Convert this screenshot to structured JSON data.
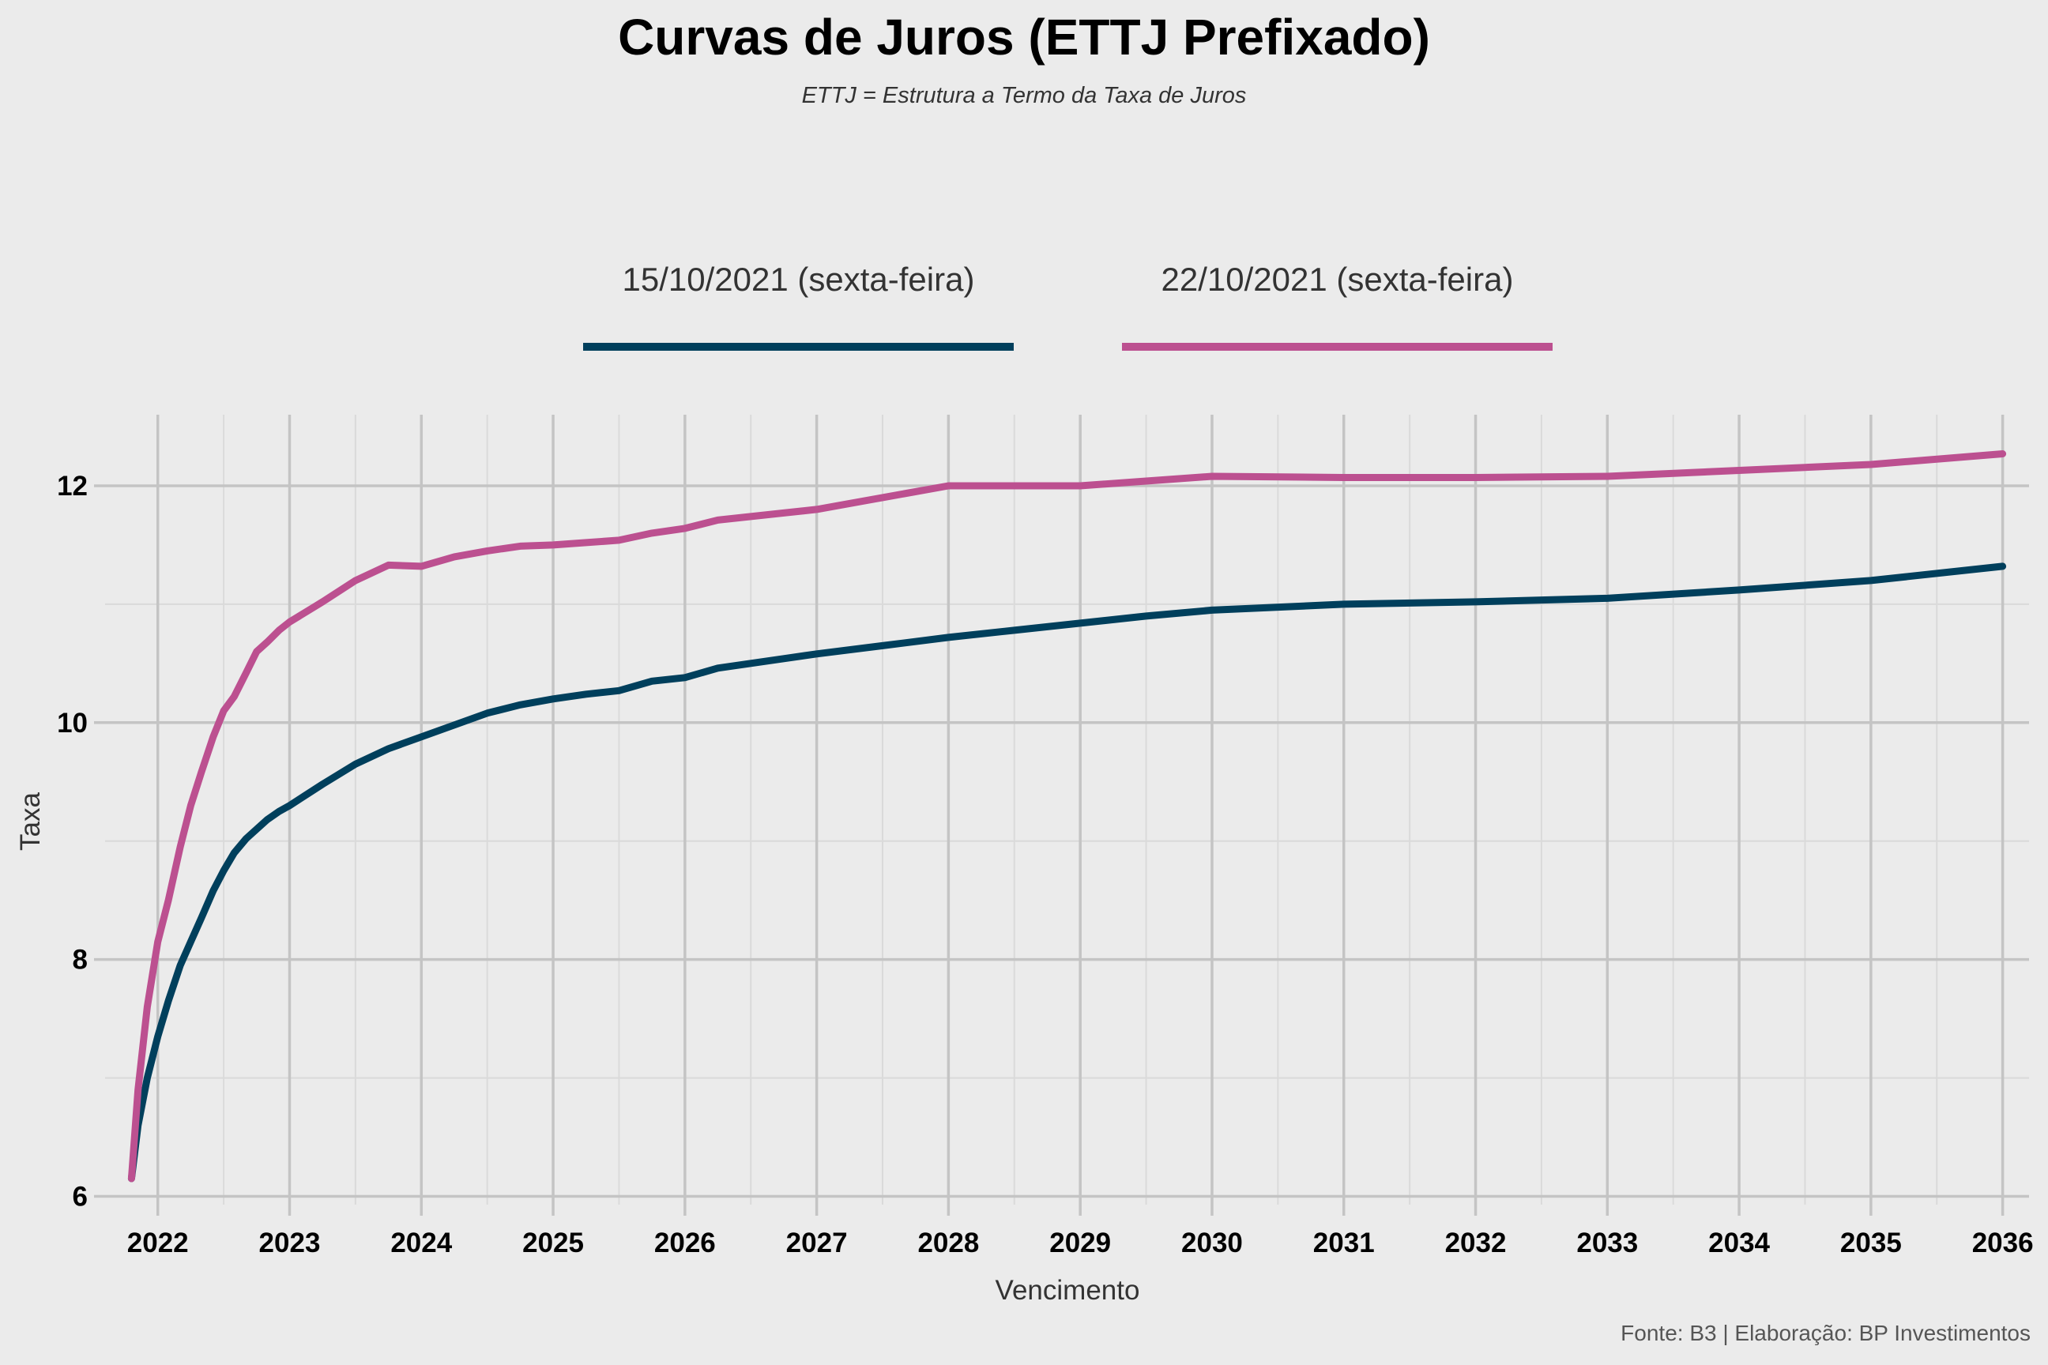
{
  "title": "Curvas de Juros (ETTJ Prefixado)",
  "subtitle": "ETTJ = Estrutura a Termo da Taxa de Juros",
  "caption": "Fonte: B3 | Elaboração: BP Investimentos",
  "colors": {
    "background": "#EBEBEB",
    "gridMajor": "#C4C4C4",
    "gridMinor": "#DADADA",
    "series1": "#003F5C",
    "series2": "#BC5090"
  },
  "chart_data": {
    "type": "line",
    "xlabel": "Vencimento",
    "ylabel": "Taxa",
    "xlim": [
      2021.6,
      2036.2
    ],
    "ylim": [
      5.93,
      12.6
    ],
    "x_ticks": [
      "2022",
      "2023",
      "2024",
      "2025",
      "2026",
      "2027",
      "2028",
      "2029",
      "2030",
      "2031",
      "2032",
      "2033",
      "2034",
      "2035",
      "2036"
    ],
    "y_ticks": [
      "6",
      "8",
      "10",
      "12"
    ],
    "grid": true,
    "legend_position": "top",
    "series": [
      {
        "name": "15/10/2021 (sexta-feira)",
        "color": "#003F5C",
        "x": [
          2021.8,
          2021.85,
          2021.92,
          2022.0,
          2022.08,
          2022.17,
          2022.25,
          2022.33,
          2022.42,
          2022.5,
          2022.58,
          2022.67,
          2022.75,
          2022.83,
          2022.92,
          2023.0,
          2023.25,
          2023.5,
          2023.75,
          2024.0,
          2024.25,
          2024.5,
          2024.75,
          2025.0,
          2025.25,
          2025.5,
          2025.75,
          2026.0,
          2026.25,
          2026.5,
          2026.75,
          2027.0,
          2027.5,
          2028.0,
          2028.5,
          2029.0,
          2029.5,
          2030.0,
          2031.0,
          2032.0,
          2033.0,
          2034.0,
          2035.0,
          2036.0
        ],
        "y": [
          6.15,
          6.6,
          7.0,
          7.35,
          7.65,
          7.95,
          8.15,
          8.35,
          8.58,
          8.75,
          8.9,
          9.02,
          9.1,
          9.18,
          9.25,
          9.3,
          9.48,
          9.65,
          9.78,
          9.88,
          9.98,
          10.08,
          10.15,
          10.2,
          10.24,
          10.27,
          10.35,
          10.38,
          10.46,
          10.5,
          10.54,
          10.58,
          10.65,
          10.72,
          10.78,
          10.84,
          10.9,
          10.95,
          11.0,
          11.02,
          11.05,
          11.12,
          11.2,
          11.32
        ]
      },
      {
        "name": "22/10/2021 (sexta-feira)",
        "color": "#BC5090",
        "x": [
          2021.8,
          2021.85,
          2021.92,
          2022.0,
          2022.08,
          2022.17,
          2022.25,
          2022.33,
          2022.42,
          2022.5,
          2022.58,
          2022.67,
          2022.75,
          2022.83,
          2022.92,
          2023.0,
          2023.25,
          2023.5,
          2023.75,
          2024.0,
          2024.25,
          2024.5,
          2024.75,
          2025.0,
          2025.25,
          2025.5,
          2025.75,
          2026.0,
          2026.25,
          2026.5,
          2026.75,
          2027.0,
          2027.5,
          2028.0,
          2028.5,
          2029.0,
          2029.5,
          2030.0,
          2031.0,
          2032.0,
          2033.0,
          2034.0,
          2035.0,
          2036.0
        ],
        "y": [
          6.15,
          6.9,
          7.6,
          8.15,
          8.5,
          8.95,
          9.3,
          9.58,
          9.88,
          10.1,
          10.22,
          10.42,
          10.6,
          10.68,
          10.78,
          10.85,
          11.02,
          11.2,
          11.33,
          11.32,
          11.4,
          11.45,
          11.49,
          11.5,
          11.52,
          11.54,
          11.6,
          11.64,
          11.71,
          11.74,
          11.77,
          11.8,
          11.9,
          12.0,
          12.0,
          12.0,
          12.04,
          12.08,
          12.07,
          12.07,
          12.08,
          12.13,
          12.18,
          12.27
        ]
      }
    ]
  }
}
